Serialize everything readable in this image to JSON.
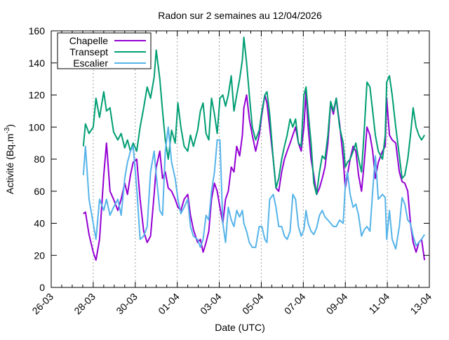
{
  "chart_data": {
    "type": "line",
    "title": "Radon sur 2 semaines au 12/04/2026",
    "xlabel": "Date (UTC)",
    "ylabel": "Activité (Bq.m",
    "ylabel_sup": "-3",
    "ylabel_end": ")",
    "x_unit": "days since 26-03 00:00",
    "xlim": [
      0,
      18
    ],
    "ylim": [
      0,
      160
    ],
    "grid": "vertical dotted at major x ticks",
    "legend_position": "top-left",
    "x_ticks": [
      {
        "value": 0,
        "label": "26-03"
      },
      {
        "value": 2,
        "label": "28-03"
      },
      {
        "value": 4,
        "label": "30-03"
      },
      {
        "value": 6,
        "label": "01-04"
      },
      {
        "value": 8,
        "label": "03-04"
      },
      {
        "value": 10,
        "label": "05-04"
      },
      {
        "value": 12,
        "label": "07-04"
      },
      {
        "value": 14,
        "label": "09-04"
      },
      {
        "value": 16,
        "label": "11-04"
      },
      {
        "value": 18,
        "label": "13-04"
      }
    ],
    "y_ticks": [
      0,
      20,
      40,
      60,
      80,
      100,
      120,
      140,
      160
    ],
    "x": [
      1.53,
      1.63,
      1.8,
      2.0,
      2.13,
      2.3,
      2.5,
      2.63,
      2.8,
      2.97,
      3.17,
      3.33,
      3.5,
      3.63,
      3.77,
      3.9,
      4.07,
      4.23,
      4.4,
      4.57,
      4.73,
      4.9,
      5.0,
      5.17,
      5.3,
      5.43,
      5.57,
      5.73,
      5.9,
      6.03,
      6.17,
      6.33,
      6.5,
      6.63,
      6.77,
      6.97,
      7.1,
      7.23,
      7.37,
      7.5,
      7.63,
      7.77,
      7.9,
      8.03,
      8.17,
      8.3,
      8.43,
      8.57,
      8.7,
      8.83,
      8.97,
      9.1,
      9.17,
      9.3,
      9.43,
      9.57,
      9.73,
      9.9,
      10.03,
      10.17,
      10.27,
      10.4,
      10.57,
      10.7,
      10.83,
      10.97,
      11.1,
      11.23,
      11.37,
      11.5,
      11.63,
      11.77,
      11.9,
      12.03,
      12.13,
      12.23,
      12.37,
      12.5,
      12.63,
      12.77,
      12.9,
      13.03,
      13.17,
      13.3,
      13.43,
      13.57,
      13.73,
      13.9,
      14.0,
      14.1,
      14.23,
      14.37,
      14.5,
      14.63,
      14.77,
      14.9,
      15.03,
      15.17,
      15.3,
      15.43,
      15.57,
      15.77,
      15.9,
      15.97,
      16.1,
      16.23,
      16.4,
      16.57,
      16.7,
      16.83,
      16.97,
      17.1,
      17.23,
      17.37,
      17.5,
      17.63,
      17.77
    ],
    "series": [
      {
        "name": "Chapelle",
        "color": "#9400d3",
        "values": [
          46,
          47,
          33,
          22,
          17,
          30,
          70,
          90,
          60,
          55,
          48,
          55,
          65,
          58,
          70,
          78,
          80,
          55,
          35,
          28,
          32,
          58,
          75,
          85,
          68,
          72,
          62,
          60,
          55,
          50,
          48,
          55,
          58,
          45,
          36,
          28,
          30,
          22,
          28,
          35,
          55,
          65,
          60,
          50,
          40,
          55,
          60,
          75,
          72,
          88,
          82,
          95,
          112,
          120,
          105,
          95,
          85,
          95,
          108,
          120,
          115,
          100,
          80,
          62,
          60,
          72,
          80,
          85,
          90,
          95,
          100,
          90,
          85,
          100,
          122,
          100,
          80,
          70,
          58,
          62,
          68,
          75,
          90,
          115,
          108,
          118,
          102,
          80,
          62,
          70,
          80,
          88,
          85,
          70,
          60,
          78,
          100,
          95,
          85,
          68,
          78,
          85,
          88,
          118,
          95,
          92,
          90,
          72,
          66,
          65,
          60,
          40,
          28,
          22,
          28,
          30,
          17
        ]
      },
      {
        "name": "Transept",
        "color": "#009e73",
        "values": [
          88,
          102,
          96,
          100,
          118,
          106,
          122,
          110,
          112,
          97,
          92,
          96,
          87,
          92,
          85,
          90,
          85,
          100,
          112,
          125,
          118,
          131,
          148,
          130,
          110,
          92,
          80,
          98,
          90,
          115,
          100,
          88,
          85,
          95,
          88,
          98,
          110,
          115,
          96,
          92,
          118,
          108,
          96,
          118,
          120,
          113,
          120,
          132,
          110,
          120,
          130,
          142,
          156,
          140,
          120,
          100,
          92,
          98,
          110,
          120,
          122,
          108,
          80,
          62,
          68,
          80,
          88,
          95,
          105,
          100,
          105,
          90,
          88,
          120,
          125,
          110,
          90,
          65,
          58,
          72,
          82,
          80,
          95,
          116,
          110,
          118,
          100,
          90,
          75,
          78,
          80,
          85,
          90,
          80,
          72,
          98,
          128,
          125,
          110,
          95,
          85,
          80,
          95,
          128,
          132,
          120,
          100,
          82,
          68,
          70,
          80,
          95,
          112,
          100,
          95,
          92,
          95
        ]
      },
      {
        "name": "Escalier",
        "color": "#56b4e9",
        "values": [
          70,
          88,
          55,
          40,
          30,
          55,
          48,
          55,
          45,
          50,
          55,
          45,
          68,
          78,
          85,
          88,
          62,
          30,
          32,
          38,
          72,
          85,
          70,
          48,
          45,
          85,
          100,
          78,
          68,
          55,
          46,
          50,
          55,
          38,
          32,
          30,
          25,
          30,
          45,
          42,
          60,
          72,
          92,
          92,
          40,
          28,
          50,
          42,
          38,
          48,
          44,
          48,
          40,
          35,
          28,
          25,
          25,
          38,
          38,
          30,
          28,
          55,
          58,
          50,
          38,
          38,
          32,
          30,
          35,
          58,
          55,
          38,
          32,
          36,
          48,
          40,
          35,
          33,
          37,
          45,
          48,
          44,
          42,
          40,
          38,
          38,
          42,
          40,
          64,
          72,
          58,
          50,
          52,
          45,
          32,
          36,
          38,
          35,
          60,
          82,
          55,
          58,
          56,
          30,
          48,
          30,
          24,
          38,
          56,
          52,
          42,
          40,
          32,
          26,
          28,
          30,
          33
        ]
      }
    ]
  }
}
